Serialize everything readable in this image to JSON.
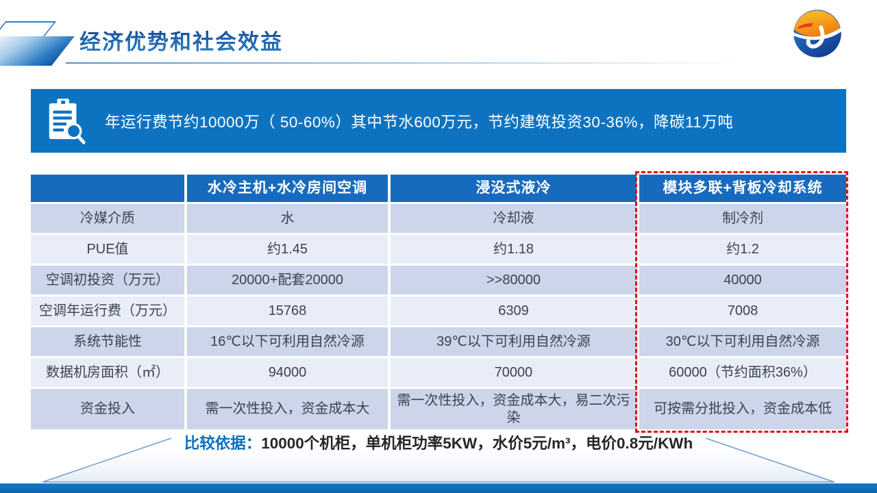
{
  "slide": {
    "title": "经济优势和社会效益"
  },
  "banner": {
    "icon": "clipboard-search-icon",
    "text": "年运行费节约10000万（ 50-60%）其中节水600万元，节约建筑投资30-36%，降碳11万吨"
  },
  "table": {
    "columns": [
      "",
      "水冷主机+水冷房间空调",
      "浸没式液冷",
      "模块多联+背板冷却系统"
    ],
    "rows": [
      {
        "label": "冷媒介质",
        "values": [
          "水",
          "冷却液",
          "制冷剂"
        ]
      },
      {
        "label": "PUE值",
        "values": [
          "约1.45",
          "约1.18",
          "约1.2"
        ]
      },
      {
        "label": "空调初投资（万元）",
        "values": [
          "20000+配套20000",
          ">>80000",
          "40000"
        ]
      },
      {
        "label": "空调年运行费（万元）",
        "values": [
          "15768",
          "6309",
          "7008"
        ]
      },
      {
        "label": "系统节能性",
        "values": [
          "16℃以下可利用自然冷源",
          "39℃以下可利用自然冷源",
          "30℃以下可利用自然冷源"
        ]
      },
      {
        "label": "数据机房面积（㎡）",
        "values": [
          "94000",
          "70000",
          "60000（节约面积36%）"
        ]
      },
      {
        "label": "资金投入",
        "values": [
          "需一次性投入，资金成本大",
          "需一次性投入，资金成本大，易二次污染",
          "可按需分批投入，资金成本低"
        ]
      }
    ],
    "highlighted_column": "模块多联+背板冷却系统"
  },
  "note": {
    "label": "比较依据：",
    "text": "10000个机柜，单机柜功率5KW，水价5元/m³，电价0.8元/KWh"
  },
  "logo": {
    "icon": "company-logo"
  },
  "colors": {
    "title_blue": "#1a5ca9",
    "banner_bg": "#0d73c1",
    "table_header_bg": "#176bbe",
    "row_alt_dark": "#ccd5ea",
    "row_alt_light": "#e9edf7",
    "highlight_red": "#e01015",
    "bottom_bar_blue": "#1171bd",
    "note_label_blue": "#0c6fbe"
  }
}
